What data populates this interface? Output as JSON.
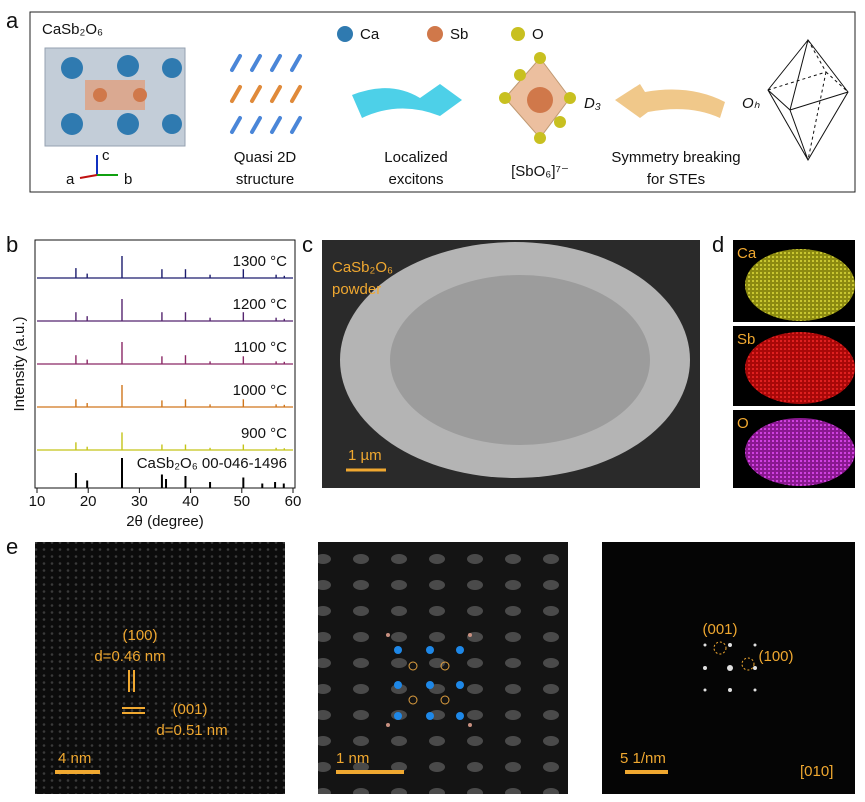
{
  "panel_labels": [
    "a",
    "b",
    "c",
    "d",
    "e"
  ],
  "panel_a": {
    "formula": "CaSb₂O₆",
    "axes": [
      "a",
      "b",
      "c"
    ],
    "legend": [
      "Ca",
      "Sb",
      "O"
    ],
    "quasi": [
      "Quasi 2D",
      "structure"
    ],
    "excitons": [
      "Localized",
      "excitons"
    ],
    "octahedron": "[SbO₆]⁷⁻",
    "d3": "D₃",
    "symmetry": [
      "Symmetry breaking",
      "for STEs"
    ],
    "oh": "Oₕ"
  },
  "chart_data": {
    "type": "stick",
    "xlabel": "2θ (degree)",
    "ylabel": "Intensity (a.u.)",
    "xlim": [
      10,
      60
    ],
    "xticks": [
      10,
      20,
      30,
      40,
      50,
      60
    ],
    "series": [
      {
        "name": "1300 °C",
        "color": "#1c1c6e",
        "x": [
          17.6,
          19.8,
          26.6,
          34.4,
          39.0,
          43.8,
          50.3,
          56.7,
          58.3
        ],
        "values": [
          45,
          20,
          100,
          40,
          40,
          15,
          40,
          15,
          10
        ]
      },
      {
        "name": "1200 °C",
        "color": "#55256f",
        "x": [
          17.6,
          19.8,
          26.6,
          34.4,
          39.0,
          43.8,
          50.3,
          56.7,
          58.3
        ],
        "values": [
          40,
          22,
          100,
          40,
          40,
          15,
          40,
          15,
          10
        ]
      },
      {
        "name": "1100 °C",
        "color": "#8a2866",
        "x": [
          17.6,
          19.8,
          26.6,
          34.4,
          39.0,
          43.8,
          50.3,
          56.7,
          58.3
        ],
        "values": [
          40,
          20,
          100,
          35,
          40,
          12,
          35,
          12,
          10
        ]
      },
      {
        "name": "1000 °C",
        "color": "#d0761c",
        "x": [
          17.6,
          19.8,
          26.6,
          34.4,
          39.0,
          43.8,
          50.3,
          56.7,
          58.3
        ],
        "values": [
          35,
          18,
          100,
          30,
          35,
          12,
          35,
          12,
          10
        ]
      },
      {
        "name": "900 °C",
        "color": "#c4c418",
        "x": [
          17.6,
          19.8,
          26.6,
          34.4,
          39.0,
          43.8,
          50.3,
          56.7,
          58.3
        ],
        "values": [
          35,
          15,
          80,
          25,
          25,
          10,
          25,
          10,
          8
        ]
      },
      {
        "name": "CaSb₂O₆ 00-046-1496",
        "color": "#000000",
        "x": [
          17.6,
          19.8,
          26.6,
          34.4,
          35.2,
          39.0,
          43.8,
          50.3,
          54.0,
          56.5,
          58.2
        ],
        "values": [
          50,
          25,
          100,
          45,
          30,
          40,
          20,
          35,
          15,
          20,
          15
        ]
      }
    ]
  },
  "panel_c": {
    "label": [
      "CaSb₂O₆",
      "powder"
    ],
    "scale": "1 µm"
  },
  "panel_d": {
    "maps": [
      "Ca",
      "Sb",
      "O"
    ]
  },
  "panel_e": {
    "left": {
      "plane1": "(100)",
      "d1": "d=0.46 nm",
      "plane2": "(001)",
      "d2": "d=0.51 nm",
      "scale": "4 nm"
    },
    "middle": {
      "scale": "1 nm"
    },
    "right": {
      "spot1": "(001)",
      "spot2": "(100)",
      "scale": "5 1/nm",
      "zone": "[010]"
    }
  }
}
